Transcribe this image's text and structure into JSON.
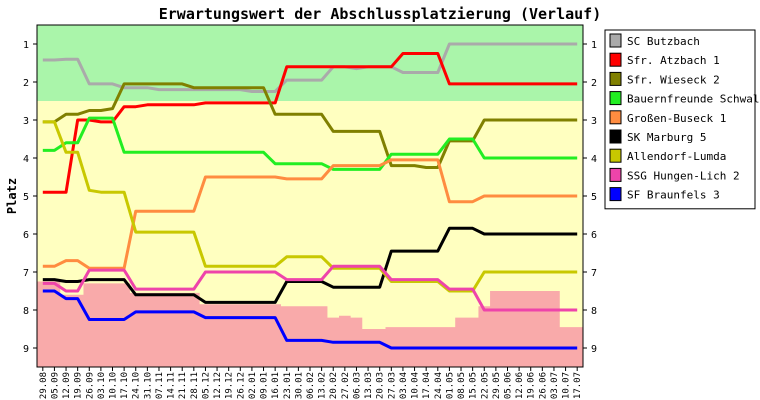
{
  "chart_data": {
    "type": "line",
    "title": "Erwartungswert der Abschlussplatzierung (Verlauf)",
    "ylabel": "Platz",
    "xlabel": "",
    "y_inverted": true,
    "ylim": [
      0.5,
      9.5
    ],
    "yticks": [
      1,
      2,
      3,
      4,
      5,
      6,
      7,
      8,
      9
    ],
    "grid": false,
    "legend_position": "right",
    "categories": [
      "29.08",
      "05.09",
      "12.09",
      "19.09",
      "26.09",
      "03.10",
      "10.10",
      "17.10",
      "24.10",
      "31.10",
      "07.11",
      "14.11",
      "21.11",
      "28.11",
      "05.12",
      "12.12",
      "19.12",
      "26.12",
      "02.01",
      "09.01",
      "16.01",
      "23.01",
      "30.01",
      "06.02",
      "13.02",
      "20.02",
      "27.02",
      "06.03",
      "13.03",
      "20.03",
      "27.03",
      "03.04",
      "10.04",
      "17.04",
      "24.04",
      "01.05",
      "08.05",
      "15.05",
      "22.05",
      "29.05",
      "05.06",
      "12.06",
      "19.06",
      "26.06",
      "03.07",
      "10.07",
      "17.07"
    ],
    "background_bands": [
      {
        "name": "aufstieg",
        "from": 0.5,
        "to": 2.5,
        "color": "#aaf5aa"
      },
      {
        "name": "mitte",
        "from": 2.5,
        "to": 9.5,
        "color": "#ffffc0"
      }
    ],
    "relegation_zone_color": "#f9aaaa",
    "relegation_zone_top": [
      7.25,
      7.25,
      7.6,
      7.6,
      7.3,
      7.3,
      7.3,
      7.3,
      7.55,
      7.55,
      7.55,
      7.55,
      7.55,
      7.55,
      7.85,
      7.85,
      7.85,
      7.85,
      7.85,
      7.85,
      7.85,
      7.9,
      7.9,
      7.9,
      7.9,
      8.2,
      8.15,
      8.2,
      8.5,
      8.5,
      8.45,
      8.45,
      8.45,
      8.45,
      8.45,
      8.45,
      8.2,
      8.2,
      7.9,
      7.5,
      7.5,
      7.5,
      7.5,
      7.5,
      7.5,
      8.45,
      8.45
    ],
    "series": [
      {
        "name": "SC Butzbach",
        "color": "#aaaaaa",
        "values": [
          1.42,
          1.42,
          1.4,
          1.4,
          2.05,
          2.05,
          2.05,
          2.15,
          2.15,
          2.15,
          2.2,
          2.2,
          2.2,
          2.2,
          2.2,
          2.2,
          2.2,
          2.2,
          2.25,
          2.25,
          2.25,
          1.95,
          1.95,
          1.95,
          1.95,
          1.6,
          1.6,
          1.65,
          1.6,
          1.6,
          1.6,
          1.75,
          1.75,
          1.75,
          1.75,
          1.0,
          1.0,
          1.0,
          1.0,
          1.0,
          1.0,
          1.0,
          1.0,
          1.0,
          1.0,
          1.0,
          1.0
        ]
      },
      {
        "name": "Sfr. Atzbach 1",
        "color": "#ff0000",
        "values": [
          4.9,
          4.9,
          4.9,
          3.0,
          3.0,
          3.05,
          3.05,
          2.65,
          2.65,
          2.6,
          2.6,
          2.6,
          2.6,
          2.6,
          2.55,
          2.55,
          2.55,
          2.55,
          2.55,
          2.55,
          2.55,
          1.6,
          1.6,
          1.6,
          1.6,
          1.6,
          1.6,
          1.6,
          1.6,
          1.6,
          1.6,
          1.25,
          1.25,
          1.25,
          1.25,
          2.05,
          2.05,
          2.05,
          2.05,
          2.05,
          2.05,
          2.05,
          2.05,
          2.05,
          2.05,
          2.05,
          2.05
        ]
      },
      {
        "name": "Sfr. Wieseck 2",
        "color": "#808000",
        "values": [
          3.05,
          3.05,
          2.85,
          2.85,
          2.75,
          2.75,
          2.7,
          2.05,
          2.05,
          2.05,
          2.05,
          2.05,
          2.05,
          2.15,
          2.15,
          2.15,
          2.15,
          2.15,
          2.15,
          2.15,
          2.85,
          2.85,
          2.85,
          2.85,
          2.85,
          3.3,
          3.3,
          3.3,
          3.3,
          3.3,
          4.2,
          4.2,
          4.2,
          4.25,
          4.25,
          3.55,
          3.55,
          3.55,
          3.0,
          3.0,
          3.0,
          3.0,
          3.0,
          3.0,
          3.0,
          3.0,
          3.0
        ]
      },
      {
        "name": "Bauernfreunde Schwalm",
        "color": "#22ee22",
        "values": [
          3.8,
          3.8,
          3.6,
          3.6,
          2.95,
          2.95,
          2.95,
          3.85,
          3.85,
          3.85,
          3.85,
          3.85,
          3.85,
          3.85,
          3.85,
          3.85,
          3.85,
          3.85,
          3.85,
          3.85,
          4.15,
          4.15,
          4.15,
          4.15,
          4.15,
          4.3,
          4.3,
          4.3,
          4.3,
          4.3,
          3.9,
          3.9,
          3.9,
          3.9,
          3.9,
          3.5,
          3.5,
          3.5,
          4.0,
          4.0,
          4.0,
          4.0,
          4.0,
          4.0,
          4.0,
          4.0,
          4.0
        ]
      },
      {
        "name": "Großen-Buseck 1",
        "color": "#ff8c40",
        "values": [
          6.85,
          6.85,
          6.7,
          6.7,
          6.9,
          6.9,
          6.9,
          6.9,
          5.4,
          5.4,
          5.4,
          5.4,
          5.4,
          5.4,
          4.5,
          4.5,
          4.5,
          4.5,
          4.5,
          4.5,
          4.5,
          4.55,
          4.55,
          4.55,
          4.55,
          4.2,
          4.2,
          4.2,
          4.2,
          4.2,
          4.05,
          4.05,
          4.05,
          4.05,
          4.05,
          5.15,
          5.15,
          5.15,
          5.0,
          5.0,
          5.0,
          5.0,
          5.0,
          5.0,
          5.0,
          5.0,
          5.0
        ]
      },
      {
        "name": "SK Marburg 5",
        "color": "#000000",
        "values": [
          7.2,
          7.2,
          7.25,
          7.25,
          7.2,
          7.2,
          7.2,
          7.2,
          7.6,
          7.6,
          7.6,
          7.6,
          7.6,
          7.6,
          7.8,
          7.8,
          7.8,
          7.8,
          7.8,
          7.8,
          7.8,
          7.25,
          7.25,
          7.25,
          7.25,
          7.4,
          7.4,
          7.4,
          7.4,
          7.4,
          6.45,
          6.45,
          6.45,
          6.45,
          6.45,
          5.85,
          5.85,
          5.85,
          6.0,
          6.0,
          6.0,
          6.0,
          6.0,
          6.0,
          6.0,
          6.0,
          6.0
        ]
      },
      {
        "name": "Allendorf-Lumda",
        "color": "#c8c800",
        "values": [
          3.05,
          3.05,
          3.85,
          3.85,
          4.85,
          4.9,
          4.9,
          4.9,
          5.95,
          5.95,
          5.95,
          5.95,
          5.95,
          5.95,
          6.85,
          6.85,
          6.85,
          6.85,
          6.85,
          6.85,
          6.85,
          6.6,
          6.6,
          6.6,
          6.6,
          6.9,
          6.9,
          6.9,
          6.9,
          6.9,
          7.25,
          7.25,
          7.25,
          7.25,
          7.25,
          7.5,
          7.5,
          7.5,
          7.0,
          7.0,
          7.0,
          7.0,
          7.0,
          7.0,
          7.0,
          7.0,
          7.0
        ]
      },
      {
        "name": "SSG Hungen-Lich 2",
        "color": "#ee44aa",
        "values": [
          7.3,
          7.3,
          7.5,
          7.5,
          6.95,
          6.95,
          6.95,
          6.95,
          7.45,
          7.45,
          7.45,
          7.45,
          7.45,
          7.45,
          7.0,
          7.0,
          7.0,
          7.0,
          7.0,
          7.0,
          7.0,
          7.2,
          7.2,
          7.2,
          7.2,
          6.85,
          6.85,
          6.85,
          6.85,
          6.85,
          7.2,
          7.2,
          7.2,
          7.2,
          7.2,
          7.45,
          7.45,
          7.45,
          8.0,
          8.0,
          8.0,
          8.0,
          8.0,
          8.0,
          8.0,
          8.0,
          8.0
        ]
      },
      {
        "name": "SF Braunfels 3",
        "color": "#0000ff",
        "values": [
          7.5,
          7.5,
          7.7,
          7.7,
          8.25,
          8.25,
          8.25,
          8.25,
          8.05,
          8.05,
          8.05,
          8.05,
          8.05,
          8.05,
          8.2,
          8.2,
          8.2,
          8.2,
          8.2,
          8.2,
          8.2,
          8.8,
          8.8,
          8.8,
          8.8,
          8.85,
          8.85,
          8.85,
          8.85,
          8.85,
          9.0,
          9.0,
          9.0,
          9.0,
          9.0,
          9.0,
          9.0,
          9.0,
          9.0,
          9.0,
          9.0,
          9.0,
          9.0,
          9.0,
          9.0,
          9.0,
          9.0
        ]
      }
    ]
  }
}
